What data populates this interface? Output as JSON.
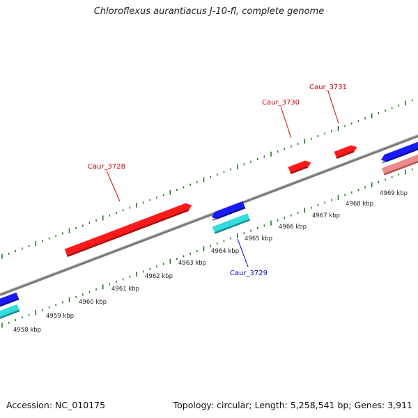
{
  "title": "Chloroflexus aurantiacus J-10-fl, complete genome",
  "footer": {
    "accession": "Accession: NC_010175",
    "topology": "Topology: circular; Length: 5,258,541 bp; Genes: 3,911"
  },
  "colors": {
    "backbone": "#8a8a8a",
    "ticks": "#1f7a1f",
    "forward_gene": "#ff1a1a",
    "reverse_gene": "#1a1aff",
    "cyan_feature": "#33dddd",
    "pink_feature": "#f08a8a",
    "label_red": "#cc0000",
    "label_blue": "#0000cc"
  },
  "axis": {
    "unit": "kbp",
    "labels": [
      "4958 kbp",
      "4959 kbp",
      "4960 kbp",
      "4961 kbp",
      "4962 kbp",
      "4963 kbp",
      "4964 kbp",
      "4965 kbp",
      "4966 kbp",
      "4967 kbp",
      "4968 kbp",
      "4969 kbp"
    ]
  },
  "gene_labels": [
    {
      "name": "Caur_3728",
      "strand": "forward"
    },
    {
      "name": "Caur_3729",
      "strand": "reverse"
    },
    {
      "name": "Caur_3730",
      "strand": "forward"
    },
    {
      "name": "Caur_3731",
      "strand": "forward"
    }
  ]
}
